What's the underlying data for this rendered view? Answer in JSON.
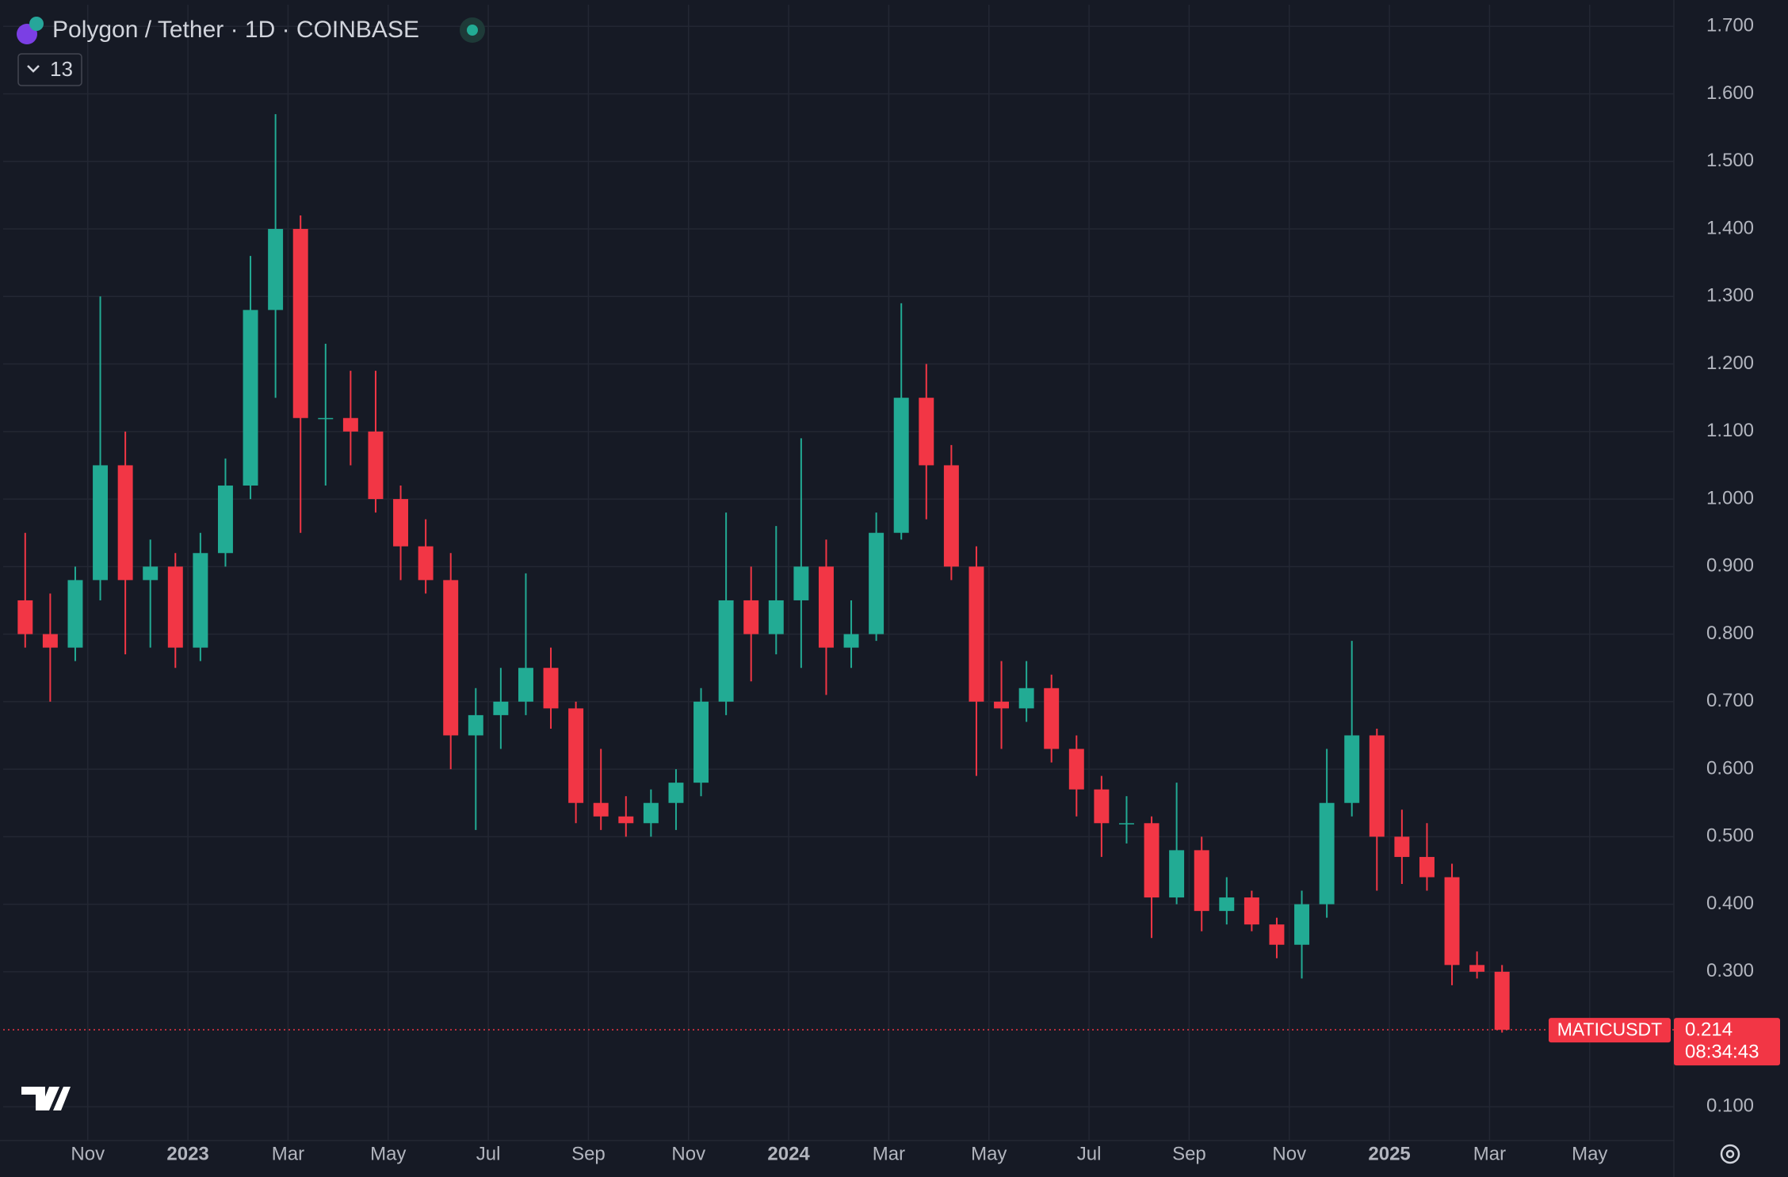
{
  "chart_data": {
    "type": "candlestick",
    "title": "Polygon / Tether · 1D · COINBASE",
    "indicator_count": "13",
    "symbol": "MATICUSDT",
    "last_price": {
      "value": 0.214,
      "label": "0.214"
    },
    "countdown": "08:34:43",
    "up_color": "#22ab94",
    "down_color": "#f23645",
    "grid": true,
    "categories": [
      null,
      null,
      null,
      "Nov",
      null,
      null,
      null,
      "2023",
      null,
      null,
      null,
      "Mar",
      null,
      null,
      null,
      "May",
      null,
      null,
      null,
      "Jul",
      null,
      null,
      null,
      "Sep",
      null,
      null,
      null,
      "Nov",
      null,
      null,
      null,
      "2024",
      null,
      null,
      null,
      "Mar",
      null,
      null,
      null,
      "May",
      null,
      null,
      null,
      "Jul",
      null,
      null,
      null,
      "Sep",
      null,
      null,
      null,
      "Nov",
      null,
      null,
      null,
      "2025",
      null,
      null,
      null,
      "Mar",
      null,
      null,
      null,
      "May",
      null,
      null
    ],
    "open": [
      0.85,
      0.8,
      0.78,
      0.88,
      1.05,
      0.88,
      0.9,
      0.78,
      0.92,
      1.02,
      1.28,
      1.4,
      1.12,
      1.12,
      1.1,
      1.0,
      0.93,
      0.88,
      0.65,
      0.68,
      0.7,
      0.75,
      0.69,
      0.55,
      0.53,
      0.52,
      0.55,
      0.58,
      0.7,
      0.85,
      0.8,
      0.85,
      0.9,
      0.78,
      0.8,
      0.95,
      1.15,
      1.05,
      0.9,
      0.7,
      0.69,
      0.72,
      0.63,
      0.57,
      0.52,
      0.52,
      0.41,
      0.48,
      0.39,
      0.41,
      0.37,
      0.34,
      0.4,
      0.55,
      0.65,
      0.5,
      0.47,
      0.44,
      0.31,
      0.3,
      null,
      null,
      null,
      null,
      null,
      null
    ],
    "high": [
      0.95,
      0.86,
      0.9,
      1.3,
      1.1,
      0.94,
      0.92,
      0.95,
      1.06,
      1.36,
      1.57,
      1.42,
      1.23,
      1.19,
      1.19,
      1.02,
      0.97,
      0.92,
      0.72,
      0.75,
      0.89,
      0.78,
      0.7,
      0.63,
      0.56,
      0.57,
      0.6,
      0.72,
      0.98,
      0.9,
      0.96,
      1.09,
      0.94,
      0.85,
      0.98,
      1.29,
      1.2,
      1.08,
      0.93,
      0.76,
      0.76,
      0.74,
      0.65,
      0.59,
      0.56,
      0.53,
      0.58,
      0.5,
      0.44,
      0.42,
      0.38,
      0.42,
      0.63,
      0.79,
      0.66,
      0.54,
      0.52,
      0.46,
      0.33,
      0.31,
      null,
      null,
      null,
      null,
      null,
      null
    ],
    "low": [
      0.78,
      0.7,
      0.76,
      0.85,
      0.77,
      0.78,
      0.75,
      0.76,
      0.9,
      1.0,
      1.15,
      0.95,
      1.02,
      1.05,
      0.98,
      0.88,
      0.86,
      0.6,
      0.51,
      0.63,
      0.68,
      0.66,
      0.52,
      0.51,
      0.5,
      0.5,
      0.51,
      0.56,
      0.68,
      0.73,
      0.77,
      0.75,
      0.71,
      0.75,
      0.79,
      0.94,
      0.97,
      0.88,
      0.59,
      0.63,
      0.67,
      0.61,
      0.53,
      0.47,
      0.49,
      0.35,
      0.4,
      0.36,
      0.37,
      0.36,
      0.32,
      0.29,
      0.38,
      0.53,
      0.42,
      0.43,
      0.42,
      0.28,
      0.29,
      0.21,
      null,
      null,
      null,
      null,
      null,
      null
    ],
    "close": [
      0.8,
      0.78,
      0.88,
      1.05,
      0.88,
      0.9,
      0.78,
      0.92,
      1.02,
      1.28,
      1.4,
      1.12,
      1.12,
      1.1,
      1.0,
      0.93,
      0.88,
      0.65,
      0.68,
      0.7,
      0.75,
      0.69,
      0.55,
      0.53,
      0.52,
      0.55,
      0.58,
      0.7,
      0.85,
      0.8,
      0.85,
      0.9,
      0.78,
      0.8,
      0.95,
      1.15,
      1.05,
      0.9,
      0.7,
      0.69,
      0.72,
      0.63,
      0.57,
      0.52,
      0.52,
      0.41,
      0.48,
      0.39,
      0.41,
      0.37,
      0.34,
      0.4,
      0.55,
      0.65,
      0.5,
      0.47,
      0.44,
      0.31,
      0.3,
      0.214,
      null,
      null,
      null,
      null,
      null,
      null
    ],
    "ylim": [
      0.05,
      1.732
    ],
    "yticks": [
      {
        "value": 0.1,
        "label": "0.100"
      },
      {
        "value": 0.3,
        "label": "0.300"
      },
      {
        "value": 0.4,
        "label": "0.400"
      },
      {
        "value": 0.5,
        "label": "0.500"
      },
      {
        "value": 0.6,
        "label": "0.600"
      },
      {
        "value": 0.7,
        "label": "0.700"
      },
      {
        "value": 0.8,
        "label": "0.800"
      },
      {
        "value": 0.9,
        "label": "0.900"
      },
      {
        "value": 1.0,
        "label": "1.000"
      },
      {
        "value": 1.1,
        "label": "1.100"
      },
      {
        "value": 1.2,
        "label": "1.200"
      },
      {
        "value": 1.3,
        "label": "1.300"
      },
      {
        "value": 1.4,
        "label": "1.400"
      },
      {
        "value": 1.5,
        "label": "1.500"
      },
      {
        "value": 1.6,
        "label": "1.600"
      },
      {
        "value": 1.7,
        "label": "1.700"
      }
    ]
  }
}
